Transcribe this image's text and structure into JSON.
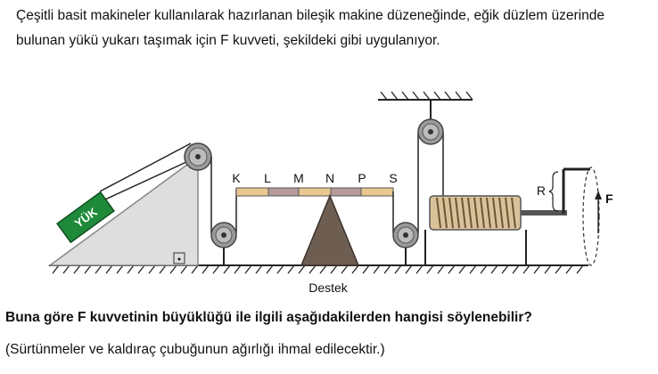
{
  "intro_text": "Çeşitli basit makineler kullanılarak hazırlanan bileşik makine düzeneğinde, eğik düzlem üzerinde bulunan yükü yukarı taşımak için F kuvveti, şekildeki gibi uygulanıyor.",
  "diagram": {
    "load_label": "YÜK",
    "lever_points": [
      "K",
      "L",
      "M",
      "N",
      "P",
      "S"
    ],
    "support_label": "Destek",
    "radius_label": "R",
    "force_label": "F"
  },
  "question_text": "Buna göre F kuvvetinin büyüklüğü ile ilgili aşağıdakilerden hangisi söylenebilir?",
  "note_text": "(Sürtünmeler ve kaldıraç çubuğunun ağırlığı ihmal edilecektir.)"
}
